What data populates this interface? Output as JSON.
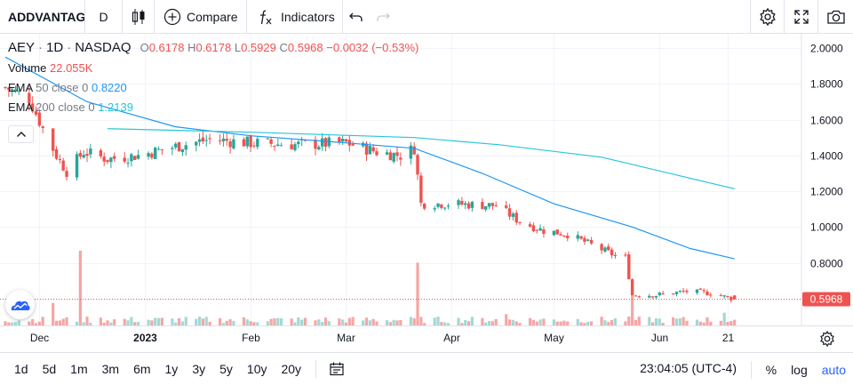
{
  "toolbar": {
    "symbol": "ADDVANTAGE",
    "interval": "D",
    "compare_label": "Compare",
    "indicators_label": "Indicators"
  },
  "legend": {
    "ticker": "AEY",
    "interval": "1D",
    "exchange": "NASDAQ",
    "sep": "·",
    "open_label": "O",
    "open": "0.6178",
    "high_label": "H",
    "high": "0.6178",
    "low_label": "L",
    "low": "0.5929",
    "close_label": "C",
    "close": "0.5968",
    "change": "−0.0032 (−0.53%)",
    "volume_label": "Volume",
    "volume_value": "22.055K",
    "ema50_label": "EMA",
    "ema50_params": "50 close 0",
    "ema50_value": "0.8220",
    "ema200_label": "EMA",
    "ema200_params": "200 close 0",
    "ema200_value": "1.2139"
  },
  "bottom": {
    "ranges": [
      "1d",
      "5d",
      "1m",
      "3m",
      "6m",
      "1y",
      "3y",
      "5y",
      "10y",
      "20y"
    ],
    "clock": "23:04:05 (UTC-4)",
    "percent": "%",
    "log": "log",
    "auto": "auto"
  },
  "colors": {
    "up": "#26a69a",
    "down": "#ef5350",
    "ema50": "#2196f3",
    "ema200": "#26c6da",
    "price_label": "#ef5350",
    "accent": "#2962ff"
  },
  "icons": {
    "chart_type": "candles-icon",
    "compare": "plus-circle-icon",
    "indicators": "fx-icon",
    "undo": "undo-icon",
    "redo": "redo-icon",
    "settings": "gear-icon",
    "fullscreen": "fullscreen-icon",
    "snapshot": "camera-icon",
    "collapse": "chevron-up-icon",
    "date_range": "calendar-icon",
    "time_axis_settings": "gear-icon",
    "brand": "tradingview-logo-icon"
  },
  "chart_data": {
    "type": "candlestick",
    "ylim": [
      0.45,
      2.08
    ],
    "y_ticks": [
      2.0,
      1.8,
      1.6,
      1.4,
      1.2,
      1.0,
      0.8
    ],
    "y_tick_labels": [
      "2.0000",
      "1.8000",
      "1.6000",
      "1.4000",
      "1.2000",
      "1.0000",
      "0.8000"
    ],
    "x_tick_labels": [
      {
        "label": "Dec",
        "date": "2022-12-01"
      },
      {
        "label": "2023",
        "date": "2023-01-01",
        "bold": true
      },
      {
        "label": "Feb",
        "date": "2023-02-01"
      },
      {
        "label": "Mar",
        "date": "2023-03-01"
      },
      {
        "label": "Apr",
        "date": "2023-04-01"
      },
      {
        "label": "May",
        "date": "2023-05-01"
      },
      {
        "label": "Jun",
        "date": "2023-06-01"
      },
      {
        "label": "21",
        "date": "2023-06-21"
      }
    ],
    "x_range": [
      "2022-11-21",
      "2023-06-27"
    ],
    "last_price": 0.5968,
    "last_price_label": "0.5968",
    "waypoints": [
      {
        "date": "2022-11-21",
        "close": 1.78
      },
      {
        "date": "2022-11-28",
        "close": 1.72
      },
      {
        "date": "2022-12-02",
        "close": 1.55
      },
      {
        "date": "2022-12-06",
        "close": 1.4
      },
      {
        "date": "2022-12-09",
        "close": 1.31
      },
      {
        "date": "2022-12-14",
        "close": 1.42
      },
      {
        "date": "2022-12-21",
        "close": 1.38
      },
      {
        "date": "2022-12-30",
        "close": 1.4
      },
      {
        "date": "2023-01-10",
        "close": 1.45
      },
      {
        "date": "2023-01-20",
        "close": 1.49
      },
      {
        "date": "2023-02-01",
        "close": 1.47
      },
      {
        "date": "2023-02-15",
        "close": 1.46
      },
      {
        "date": "2023-03-01",
        "close": 1.47
      },
      {
        "date": "2023-03-10",
        "close": 1.42
      },
      {
        "date": "2023-03-17",
        "close": 1.4
      },
      {
        "date": "2023-03-21",
        "close": 1.44
      },
      {
        "date": "2023-03-23",
        "close": 1.13
      },
      {
        "date": "2023-03-31",
        "close": 1.13
      },
      {
        "date": "2023-04-14",
        "close": 1.12
      },
      {
        "date": "2023-04-21",
        "close": 1.03
      },
      {
        "date": "2023-04-28",
        "close": 0.98
      },
      {
        "date": "2023-05-05",
        "close": 0.96
      },
      {
        "date": "2023-05-12",
        "close": 0.9
      },
      {
        "date": "2023-05-19",
        "close": 0.84
      },
      {
        "date": "2023-05-22",
        "close": 0.83
      },
      {
        "date": "2023-05-24",
        "close": 0.62
      },
      {
        "date": "2023-05-31",
        "close": 0.62
      },
      {
        "date": "2023-06-09",
        "close": 0.64
      },
      {
        "date": "2023-06-16",
        "close": 0.63
      },
      {
        "date": "2023-06-23",
        "close": 0.5968
      }
    ],
    "volume_spikes": [
      {
        "date": "2022-12-13",
        "relative": 1.0
      },
      {
        "date": "2023-03-22",
        "relative": 0.84
      },
      {
        "date": "2023-05-24",
        "relative": 0.62
      },
      {
        "date": "2022-12-05",
        "relative": 0.3
      },
      {
        "date": "2023-06-20",
        "relative": 0.17
      },
      {
        "date": "2023-04-17",
        "relative": 0.15
      }
    ],
    "ema50": [
      {
        "date": "2022-11-21",
        "value": 1.95
      },
      {
        "date": "2022-12-15",
        "value": 1.7
      },
      {
        "date": "2023-01-10",
        "value": 1.56
      },
      {
        "date": "2023-02-01",
        "value": 1.51
      },
      {
        "date": "2023-03-01",
        "value": 1.47
      },
      {
        "date": "2023-03-21",
        "value": 1.44
      },
      {
        "date": "2023-04-10",
        "value": 1.3
      },
      {
        "date": "2023-05-01",
        "value": 1.13
      },
      {
        "date": "2023-05-24",
        "value": 1.0
      },
      {
        "date": "2023-06-10",
        "value": 0.88
      },
      {
        "date": "2023-06-23",
        "value": 0.822
      }
    ],
    "ema200": [
      {
        "date": "2022-12-21",
        "value": 1.55
      },
      {
        "date": "2023-02-01",
        "value": 1.53
      },
      {
        "date": "2023-03-21",
        "value": 1.5
      },
      {
        "date": "2023-04-15",
        "value": 1.46
      },
      {
        "date": "2023-05-15",
        "value": 1.39
      },
      {
        "date": "2023-06-23",
        "value": 1.2139
      }
    ]
  }
}
